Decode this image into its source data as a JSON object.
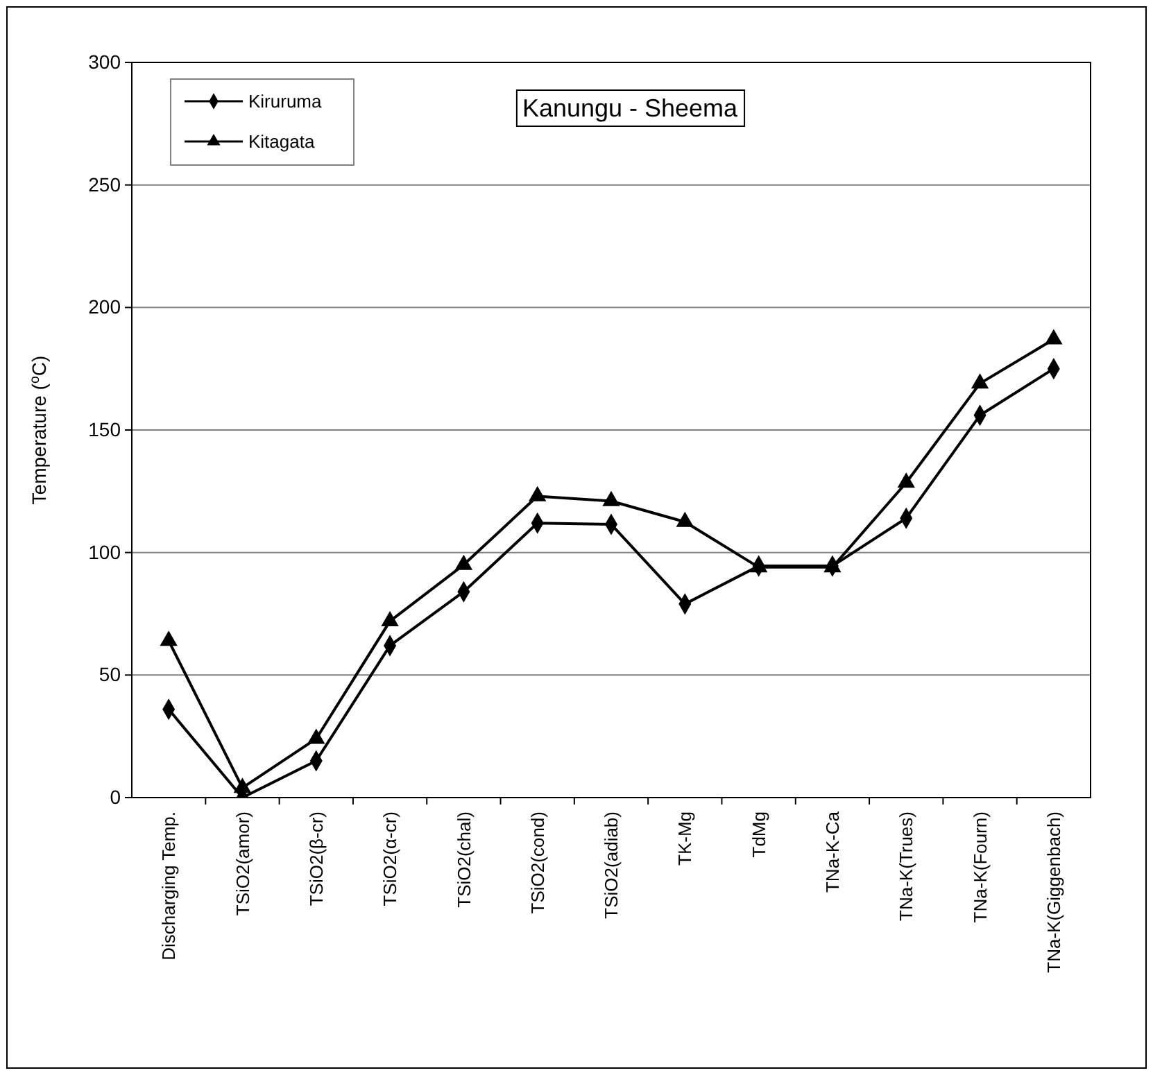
{
  "chart_data": {
    "type": "line",
    "title": "Kanungu - Sheema",
    "ylabel": "Temperature ($^{o}$C)",
    "categories": [
      "Discharging Temp.",
      "TSiO2(amor)",
      "TSiO2(β-cr)",
      "TSiO2(α-cr)",
      "TSiO2(chal)",
      "TSiO2(cond)",
      "TSiO2(adiab)",
      "TK-Mg",
      "TdMg",
      "TNa-K-Ca",
      "TNa-K(Trues)",
      "TNa-K(Fourn)",
      "TNa-K(Giggenbach)"
    ],
    "series": [
      {
        "name": "Kiruruma",
        "color": "#000000",
        "marker": "diamond",
        "values": [
          36,
          0,
          15,
          62,
          84,
          112,
          111.5,
          79,
          94.5,
          94.5,
          114,
          156,
          175
        ]
      },
      {
        "name": "Kitagata",
        "color": "#000000",
        "marker": "triangle",
        "values": [
          64,
          4,
          24,
          72,
          95,
          123,
          121,
          112.5,
          94,
          94,
          128.5,
          169,
          187
        ]
      }
    ],
    "ylim": [
      0,
      300
    ],
    "yticks": [
      0,
      50,
      100,
      150,
      200,
      250,
      300
    ],
    "grid": "y",
    "legend": "top left",
    "line_style": "solid"
  }
}
